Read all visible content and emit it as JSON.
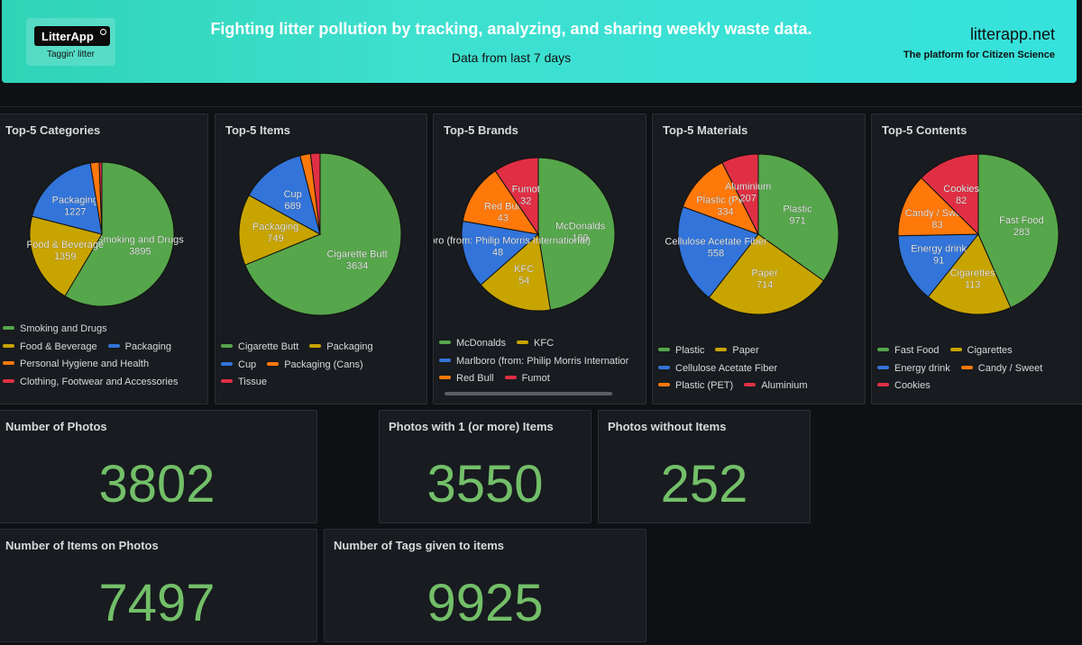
{
  "banner": {
    "logo_text": "LitterApp",
    "logo_tagline": "Taggin' litter",
    "title": "Fighting litter pollution by tracking, analyzing, and sharing weekly waste data.",
    "subtitle": "Data from last 7 days",
    "site": "litterapp.net",
    "site_tagline": "The platform for Citizen Science"
  },
  "colors": {
    "green": "#56a64b",
    "yellow": "#c8a400",
    "blue": "#3274d9",
    "orange": "#ff780a",
    "red": "#e02f44",
    "stat_value": "#73bf69"
  },
  "panels": [
    {
      "title": "Top-5 Categories",
      "chart_data": {
        "type": "pie",
        "title": "Top-5 Categories",
        "slices": [
          {
            "label": "Smoking and Drugs",
            "value": 3895,
            "color": "#56a64b"
          },
          {
            "label": "Food & Beverage",
            "value": 1359,
            "color": "#c8a400"
          },
          {
            "label": "Packaging",
            "value": 1227,
            "color": "#3274d9"
          },
          {
            "label": "Personal Hygiene and Health",
            "value": 130,
            "color": "#ff780a"
          },
          {
            "label": "Clothing, Footwear and Accessories",
            "value": 40,
            "color": "#e02f44"
          }
        ],
        "legend_rows": [
          [
            "Smoking and Drugs"
          ],
          [
            "Food & Beverage",
            "Packaging"
          ],
          [
            "Personal Hygiene and Health"
          ],
          [
            "Clothing, Footwear and Accessories"
          ]
        ]
      }
    },
    {
      "title": "Top-5 Items",
      "chart_data": {
        "type": "pie",
        "title": "Top-5 Items",
        "slices": [
          {
            "label": "Cigarette Butt",
            "value": 3634,
            "color": "#56a64b"
          },
          {
            "label": "Packaging",
            "value": 749,
            "color": "#c8a400"
          },
          {
            "label": "Cup",
            "value": 689,
            "color": "#3274d9"
          },
          {
            "label": "Packaging (Cans)",
            "value": 110,
            "color": "#ff780a"
          },
          {
            "label": "Tissue",
            "value": 100,
            "color": "#e02f44"
          }
        ],
        "legend_rows": [
          [
            "Cigarette Butt",
            "Packaging"
          ],
          [
            "Cup",
            "Packaging (Cans)"
          ],
          [
            "Tissue"
          ]
        ]
      }
    },
    {
      "title": "Top-5 Brands",
      "chart_data": {
        "type": "pie",
        "title": "Top-5 Brands",
        "slices": [
          {
            "label": "McDonalds",
            "value": 160,
            "color": "#56a64b",
            "display": "McDonalds\n160"
          },
          {
            "label": "KFC",
            "value": 54,
            "color": "#c8a400"
          },
          {
            "label": "Marlboro (from: Philip Morris International)",
            "value": 48,
            "color": "#3274d9"
          },
          {
            "label": "Red Bull",
            "value": 43,
            "color": "#ff780a"
          },
          {
            "label": "Fumot",
            "value": 32,
            "color": "#e02f44"
          }
        ],
        "legend_rows": [
          [
            "McDonalds",
            "KFC"
          ],
          [
            "Marlboro (from: Philip Morris Internatior"
          ],
          [
            "Red Bull",
            "Fumot"
          ]
        ]
      }
    },
    {
      "title": "Top-5 Materials",
      "chart_data": {
        "type": "pie",
        "title": "Top-5 Materials",
        "slices": [
          {
            "label": "Plastic",
            "value": 971,
            "color": "#56a64b"
          },
          {
            "label": "Paper",
            "value": 714,
            "color": "#c8a400"
          },
          {
            "label": "Cellulose Acetate Fiber",
            "value": 558,
            "color": "#3274d9"
          },
          {
            "label": "Plastic (PET)",
            "value": 334,
            "color": "#ff780a"
          },
          {
            "label": "Aluminium",
            "value": 207,
            "color": "#e02f44"
          }
        ],
        "legend_rows": [
          [
            "Plastic",
            "Paper"
          ],
          [
            "Cellulose Acetate Fiber"
          ],
          [
            "Plastic (PET)",
            "Aluminium"
          ]
        ]
      }
    },
    {
      "title": "Top-5 Contents",
      "chart_data": {
        "type": "pie",
        "title": "Top-5 Contents",
        "slices": [
          {
            "label": "Fast Food",
            "value": 283,
            "color": "#56a64b"
          },
          {
            "label": "Cigarettes",
            "value": 113,
            "color": "#c8a400"
          },
          {
            "label": "Energy drink",
            "value": 91,
            "color": "#3274d9"
          },
          {
            "label": "Candy / Sweet",
            "value": 83,
            "color": "#ff780a"
          },
          {
            "label": "Cookies",
            "value": 82,
            "color": "#e02f44"
          }
        ],
        "legend_rows": [
          [
            "Fast Food",
            "Cigarettes"
          ],
          [
            "Energy drink",
            "Candy / Sweet"
          ],
          [
            "Cookies"
          ]
        ]
      }
    }
  ],
  "stats": {
    "photos": {
      "title": "Number of Photos",
      "value": "3802"
    },
    "photos_with_items": {
      "title": "Photos with 1 (or more) Items",
      "value": "3550"
    },
    "photos_without_items": {
      "title": "Photos without Items",
      "value": "252"
    },
    "items_on_photos": {
      "title": "Number of Items on Photos",
      "value": "7497"
    },
    "tags_given": {
      "title": "Number of Tags given to items",
      "value": "9925"
    }
  }
}
